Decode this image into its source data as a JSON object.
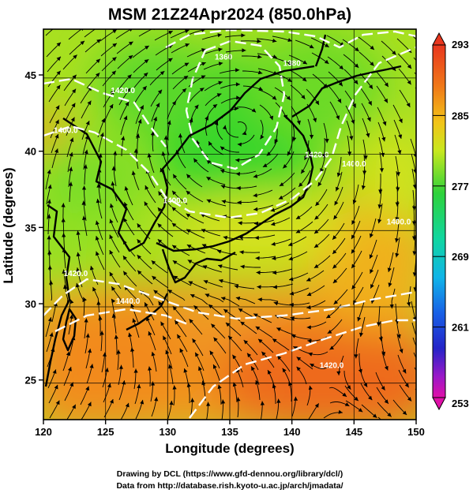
{
  "title": "MSM 21Z24Apr2024 (850.0hPa)",
  "axes": {
    "xlabel": "Longitude (degrees)",
    "ylabel": "Latitude  (degrees)",
    "xlim": [
      120,
      150
    ],
    "ylim": [
      22.4,
      48
    ],
    "xticks": [
      120,
      125,
      130,
      135,
      140,
      145,
      150
    ],
    "yticks": [
      25,
      30,
      35,
      40,
      45
    ]
  },
  "colorbar": {
    "min": 253,
    "max": 293,
    "ticks": [
      "293",
      "285",
      "277",
      "269",
      "261",
      "253"
    ]
  },
  "contour_labels": [
    {
      "text": "1380",
      "lon": 140.0,
      "lat": 45.6
    },
    {
      "text": "1360",
      "lon": 134.5,
      "lat": 46.0
    },
    {
      "text": "1420.0",
      "lon": 126.4,
      "lat": 43.8
    },
    {
      "text": "1400.0",
      "lon": 121.8,
      "lat": 41.2
    },
    {
      "text": "1400.0",
      "lon": 130.6,
      "lat": 36.6
    },
    {
      "text": "1400.0",
      "lon": 145.0,
      "lat": 39.0
    },
    {
      "text": "1400.0",
      "lon": 148.6,
      "lat": 35.2
    },
    {
      "text": "1420.0",
      "lon": 142.0,
      "lat": 39.6
    },
    {
      "text": "1420.0",
      "lon": 122.6,
      "lat": 31.8
    },
    {
      "text": "1440.0",
      "lon": 126.8,
      "lat": 30.0
    },
    {
      "text": "1420.0",
      "lon": 143.2,
      "lat": 25.8
    }
  ],
  "credits": {
    "line1": "Drawing by DCL (https://www.gfd-dennou.org/library/dcl/)",
    "line2": "Data from http://database.rish.kyoto-u.ac.jp/arch/jmadata/"
  },
  "colors": {
    "low_temp": "#3ad62a",
    "mid_temp": "#c8e81e",
    "high_temp": "#f07a18",
    "contour": "#ffffff",
    "streamline": "#000000"
  }
}
